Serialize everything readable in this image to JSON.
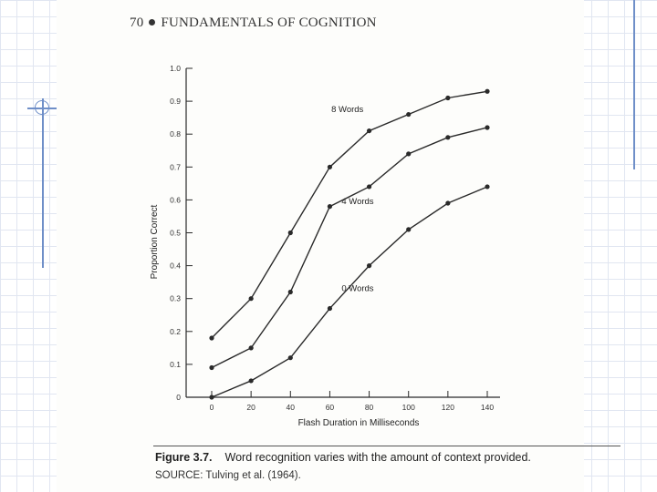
{
  "header": {
    "page_number": "70",
    "title": "FUNDAMENTALS OF COGNITION"
  },
  "caption": {
    "figure_label": "Figure 3.7.",
    "text": "Word recognition varies with the amount of context provided.",
    "source": "SOURCE: Tulving et al. (1964)."
  },
  "chart_data": {
    "type": "line",
    "xlabel": "Flash Duration in Milliseconds",
    "ylabel": "Proportion Correct",
    "xlim": [
      0,
      140
    ],
    "ylim": [
      0,
      1.0
    ],
    "x_ticks": [
      "0",
      "20",
      "40",
      "60",
      "80",
      "100",
      "120",
      "140"
    ],
    "y_ticks": [
      "0",
      "0.1",
      "0.2",
      "0.3",
      "0.4",
      "0.5",
      "0.6",
      "0.7",
      "0.8",
      "0.9",
      "1.0"
    ],
    "x": [
      0,
      20,
      40,
      60,
      80,
      100,
      120,
      140
    ],
    "series": [
      {
        "name": "8 Words",
        "values": [
          0.18,
          0.3,
          0.5,
          0.7,
          0.81,
          0.86,
          0.91,
          0.93
        ]
      },
      {
        "name": "4 Words",
        "values": [
          0.09,
          0.15,
          0.32,
          0.58,
          0.64,
          0.74,
          0.79,
          0.82
        ]
      },
      {
        "name": "0 Words",
        "values": [
          0.0,
          0.05,
          0.12,
          0.27,
          0.4,
          0.51,
          0.59,
          0.64
        ]
      }
    ],
    "grid": false,
    "legend": "inline labels"
  },
  "colors": {
    "line": "#2a2a2a",
    "accent": "#6f8fc8"
  }
}
